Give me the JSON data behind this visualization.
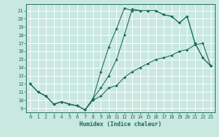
{
  "xlabel": "Humidex (Indice chaleur)",
  "bg_color": "#c8e8e0",
  "grid_color": "#ffffff",
  "line_color": "#1a6b5a",
  "xlim": [
    -0.5,
    23.5
  ],
  "ylim": [
    8.5,
    21.8
  ],
  "xticks": [
    0,
    1,
    2,
    3,
    4,
    5,
    6,
    7,
    8,
    9,
    10,
    11,
    12,
    13,
    14,
    15,
    16,
    17,
    18,
    19,
    20,
    21,
    22,
    23
  ],
  "yticks": [
    9,
    10,
    11,
    12,
    13,
    14,
    15,
    16,
    17,
    18,
    19,
    20,
    21
  ],
  "line1_x": [
    0,
    1,
    2,
    3,
    4,
    5,
    6,
    7,
    8,
    9,
    10,
    11,
    12,
    13,
    14,
    15,
    16,
    17,
    18,
    19,
    20,
    21,
    22,
    23
  ],
  "line1_y": [
    12.0,
    11.0,
    10.5,
    9.5,
    9.8,
    9.5,
    9.3,
    8.8,
    10.0,
    10.5,
    11.5,
    11.8,
    12.8,
    13.5,
    14.0,
    14.5,
    15.0,
    15.2,
    15.5,
    16.0,
    16.2,
    16.8,
    17.0,
    14.2
  ],
  "line2_x": [
    0,
    1,
    2,
    3,
    4,
    5,
    6,
    7,
    8,
    9,
    10,
    11,
    12,
    13,
    14,
    15,
    16,
    17,
    18,
    19,
    20,
    21,
    22,
    23
  ],
  "line2_y": [
    12.0,
    11.0,
    10.5,
    9.5,
    9.8,
    9.5,
    9.3,
    8.8,
    10.2,
    13.5,
    16.5,
    18.8,
    21.3,
    21.0,
    21.0,
    21.0,
    21.0,
    20.5,
    20.3,
    19.5,
    20.3,
    17.0,
    15.2,
    14.2
  ],
  "line3_x": [
    0,
    1,
    2,
    3,
    4,
    5,
    6,
    7,
    8,
    9,
    10,
    11,
    12,
    13,
    14,
    15,
    16,
    17,
    18,
    19,
    20,
    21,
    22,
    23
  ],
  "line3_y": [
    12.0,
    11.0,
    10.5,
    9.5,
    9.8,
    9.5,
    9.3,
    8.8,
    10.2,
    11.5,
    13.0,
    15.0,
    18.0,
    21.2,
    21.0,
    21.0,
    21.0,
    20.5,
    20.3,
    19.5,
    20.3,
    17.0,
    15.2,
    14.2
  ]
}
